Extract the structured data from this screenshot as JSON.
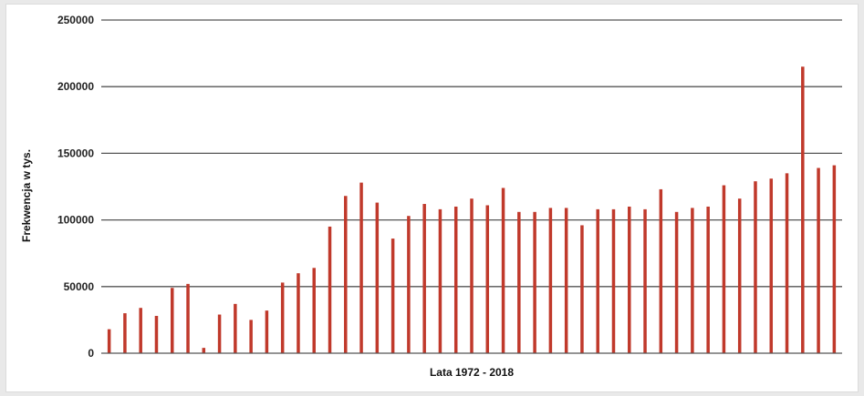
{
  "chart_data": {
    "type": "bar",
    "title": "",
    "xlabel": "Lata 1972 - 2018",
    "ylabel": "Frekwencja w tys.",
    "ylim": [
      0,
      250000
    ],
    "yticks": [
      0,
      50000,
      100000,
      150000,
      200000,
      250000
    ],
    "grid": true,
    "legend": "none",
    "bar_color": "#c0392b",
    "grid_color": "#555555",
    "values": [
      18000,
      30000,
      34000,
      28000,
      49000,
      52000,
      4000,
      29000,
      37000,
      25000,
      32000,
      53000,
      60000,
      64000,
      95000,
      118000,
      128000,
      113000,
      86000,
      103000,
      112000,
      108000,
      110000,
      116000,
      111000,
      124000,
      106000,
      106000,
      109000,
      109000,
      96000,
      108000,
      108000,
      110000,
      108000,
      123000,
      106000,
      109000,
      110000,
      126000,
      116000,
      129000,
      131000,
      135000,
      215000,
      139000,
      141000
    ]
  }
}
